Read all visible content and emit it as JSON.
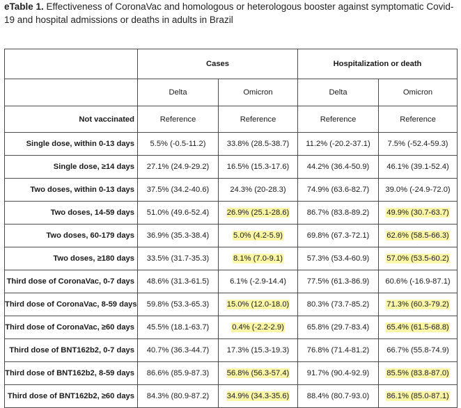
{
  "caption": {
    "label": "eTable 1.",
    "text": " Effectiveness of CoronaVac and homologous or heterologous booster against symptomatic Covid-19 and hospital admissions or deaths in adults in Brazil"
  },
  "table": {
    "groups": [
      "Cases",
      "Hospitalization or death"
    ],
    "subheaders": [
      "Delta",
      "Omicron",
      "Delta",
      "Omicron"
    ],
    "rows": [
      {
        "label": "Not vaccinated",
        "cells": [
          "Reference",
          "Reference",
          "Reference",
          "Reference"
        ],
        "hl": [
          false,
          false,
          false,
          false
        ]
      },
      {
        "label": "Single dose, within 0-13 days",
        "cells": [
          "5.5% (-0.5-11.2)",
          "33.8% (28.5-38.7)",
          "11.2% (-20.2-37.1)",
          "7.5% (-52.4-59.3)"
        ],
        "hl": [
          false,
          false,
          false,
          false
        ]
      },
      {
        "label": "Single dose, ≥14 days",
        "cells": [
          "27.1% (24.9-29.2)",
          "16.5% (15.3-17.6)",
          "44.2% (36.4-50.9)",
          "46.1% (39.1-52.4)"
        ],
        "hl": [
          false,
          false,
          false,
          false
        ]
      },
      {
        "label": "Two doses, within 0-13 days",
        "cells": [
          "37.5% (34.2-40.6)",
          "24.3% (20-28.3)",
          "74.9% (63.6-82.7)",
          "39.0% (-24.9-72.0)"
        ],
        "hl": [
          false,
          false,
          false,
          false
        ]
      },
      {
        "label": "Two doses, 14-59 days",
        "cells": [
          "51.0% (49.6-52.4)",
          "26.9% (25.1-28.6)",
          "86.7% (83.8-89.2)",
          "49.9% (30.7-63.7)"
        ],
        "hl": [
          false,
          true,
          false,
          true
        ]
      },
      {
        "label": "Two doses, 60-179 days",
        "cells": [
          "36.9% (35.3-38.4)",
          "5.0% (4.2-5.9)",
          "69.8% (67.3-72.1)",
          "62.6% (58.5-66.3)"
        ],
        "hl": [
          false,
          true,
          false,
          true
        ]
      },
      {
        "label": "Two doses, ≥180 days",
        "cells": [
          "33.5% (31.7-35.3)",
          "8.1% (7.0-9.1)",
          "57.3% (53.4-60.9)",
          "57.0% (53.5-60.2)"
        ],
        "hl": [
          false,
          true,
          false,
          true
        ]
      },
      {
        "label": "Third dose of CoronaVac, 0-7 days",
        "cells": [
          "48.6% (31.3-61.5)",
          "6.1% (-2.9-14.4)",
          "77.5% (61.3-86.9)",
          "60.6% (-16.9-87.1)"
        ],
        "hl": [
          false,
          false,
          false,
          false
        ]
      },
      {
        "label": "Third dose of CoronaVac, 8-59 days",
        "cells": [
          "59.8% (53.3-65.3)",
          "15.0% (12.0-18.0)",
          "80.3% (73.7-85.2)",
          "71.3% (60.3-79.2)"
        ],
        "hl": [
          false,
          true,
          false,
          true
        ]
      },
      {
        "label": "Third dose of CoronaVac, ≥60 days",
        "cells": [
          "45.5% (18.1-63.7)",
          "0.4% (-2.2-2.9)",
          "65.8% (29.7-83.4)",
          "65.4% (61.5-68.8)"
        ],
        "hl": [
          false,
          true,
          false,
          true
        ]
      },
      {
        "label": "Third dose of BNT162b2, 0-7 days",
        "cells": [
          "40.7% (36.3-44.7)",
          "17.3% (15.3-19.3)",
          "76.8% (71.4-81.2)",
          "66.7% (55.8-74.9)"
        ],
        "hl": [
          false,
          false,
          false,
          false
        ]
      },
      {
        "label": "Third dose of BNT162b2, 8-59 days",
        "cells": [
          "86.6% (85.9-87.3)",
          "56.8% (56.3-57.4)",
          "91.7% (90.4-92.9)",
          "85.5% (83.8-87.0)"
        ],
        "hl": [
          false,
          true,
          false,
          true
        ]
      },
      {
        "label": "Third dose of BNT162b2, ≥60 days",
        "cells": [
          "84.3% (80.9-87.2)",
          "34.9% (34.3-35.6)",
          "88.4% (80.7-93.0)",
          "86.1% (85.0-87.1)"
        ],
        "hl": [
          false,
          true,
          false,
          true
        ]
      }
    ]
  }
}
